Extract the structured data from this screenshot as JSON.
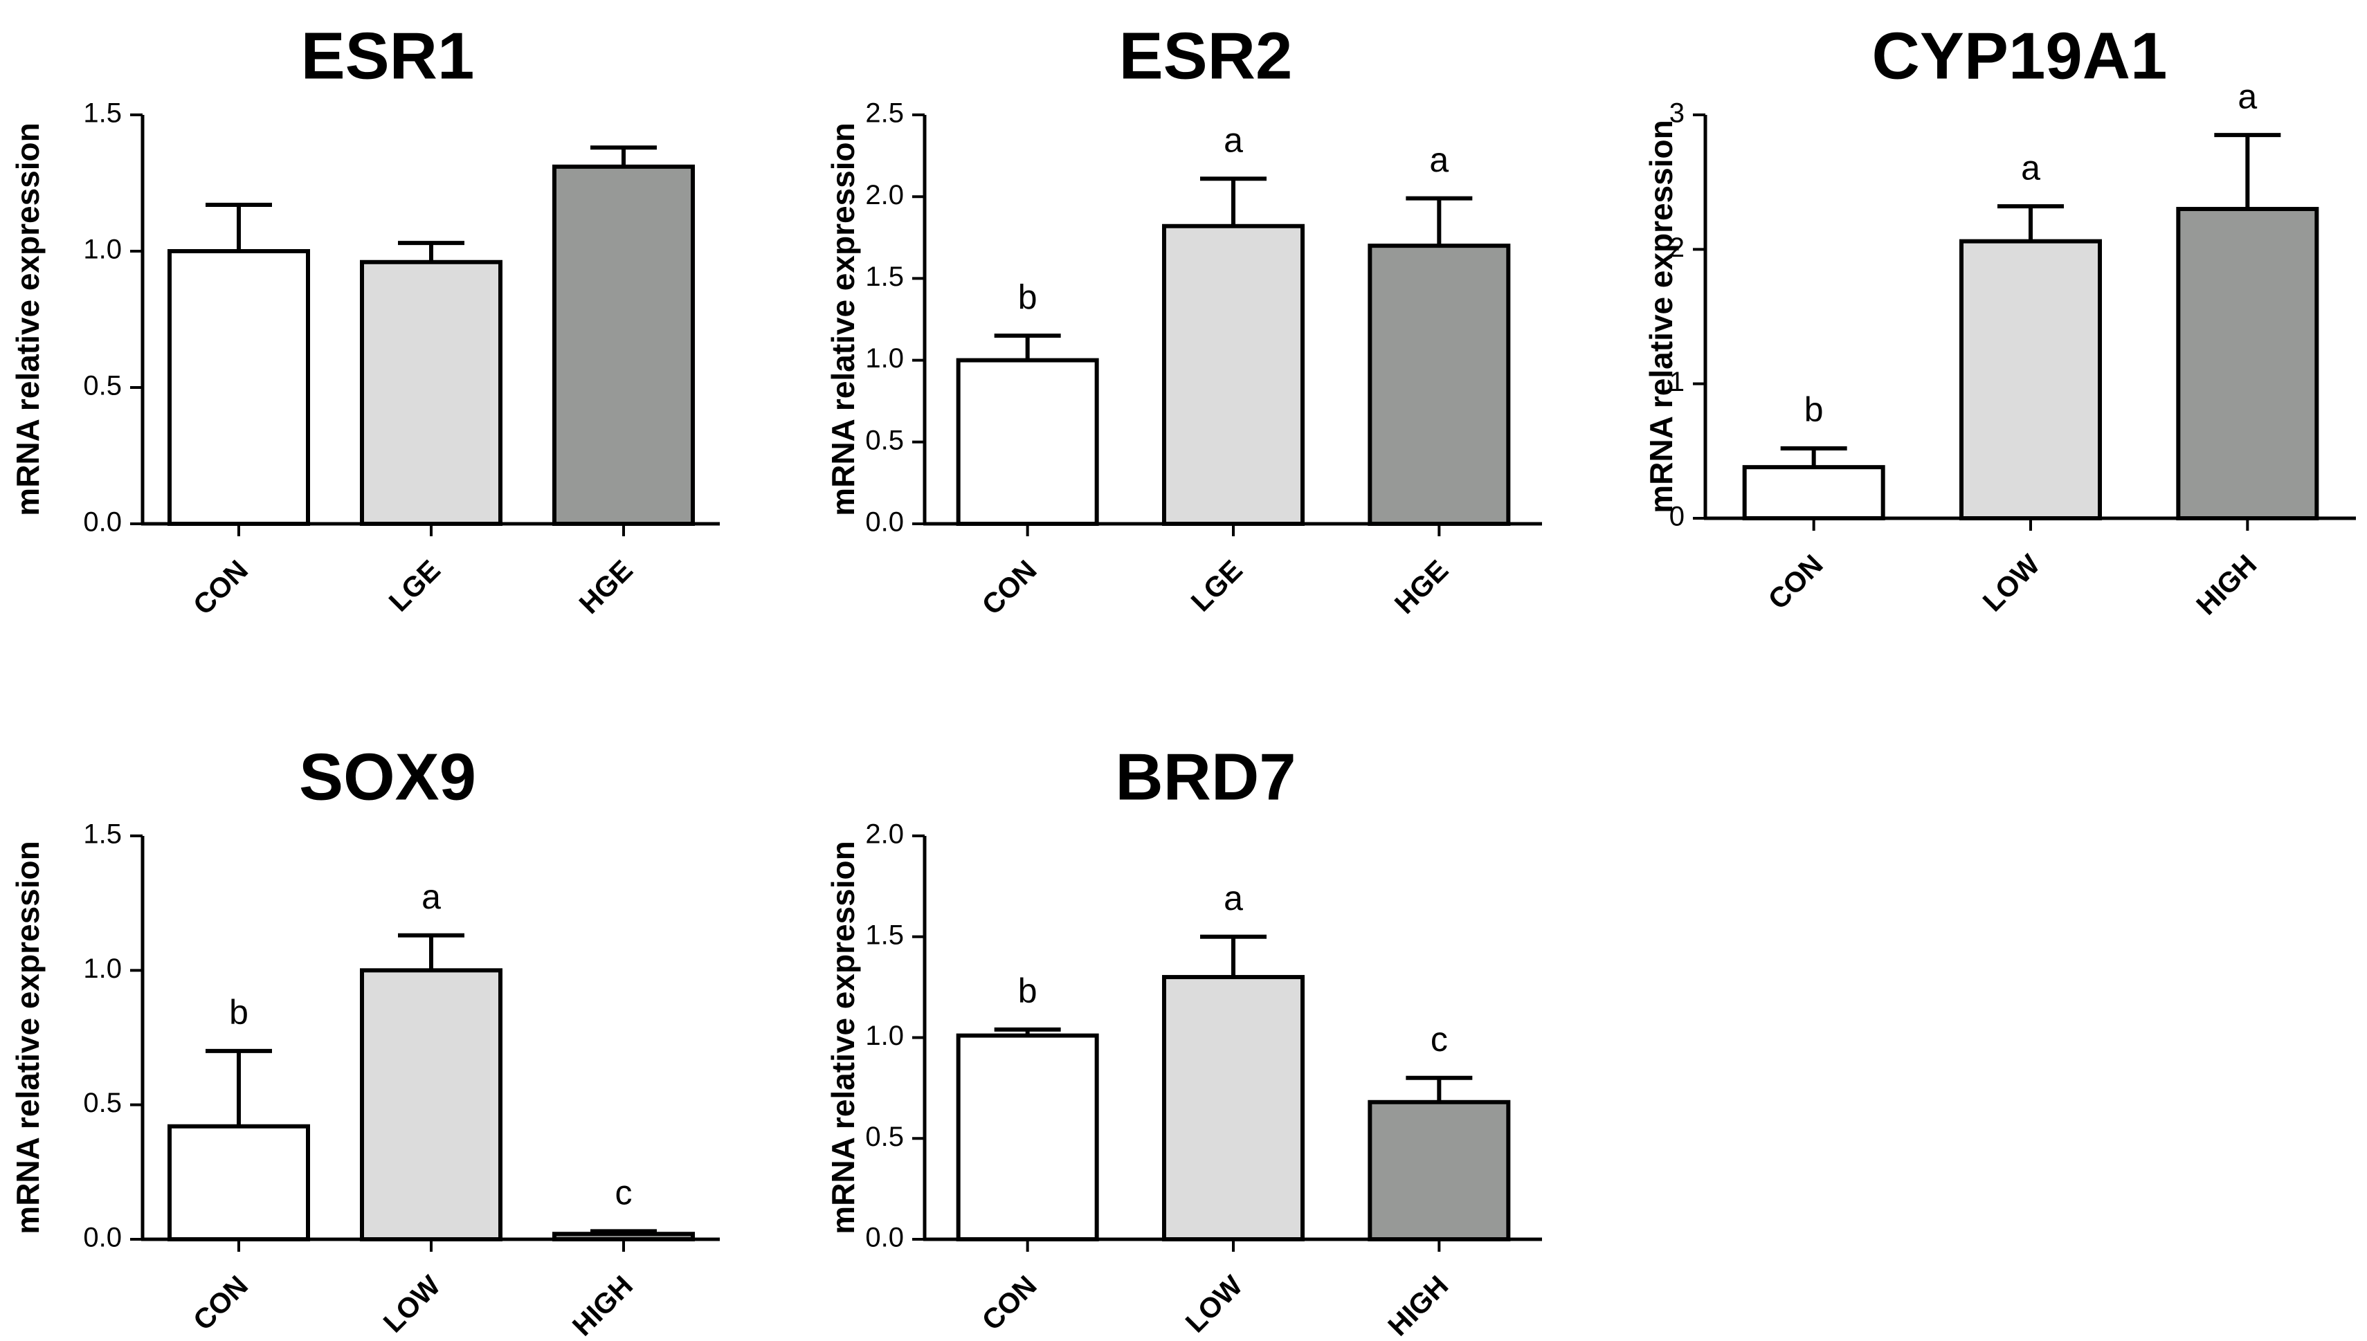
{
  "figure_colors": {
    "CON": "#ffffff",
    "LGE": "#dcdcdc",
    "LOW": "#dcdcdc",
    "HGE": "#979997",
    "HIGH": "#979997",
    "axis": "#000000"
  },
  "chart_data": [
    {
      "type": "bar",
      "title": "ESR1",
      "ylabel": "mRNA relative expression",
      "categories": [
        "CON",
        "LGE",
        "HGE"
      ],
      "values": [
        1.0,
        0.96,
        1.31
      ],
      "errors": [
        0.17,
        0.07,
        0.07
      ],
      "significance": [
        "",
        "",
        ""
      ],
      "ylim": [
        0,
        1.5
      ],
      "yticks": [
        "0.0",
        "0.5",
        "1.0",
        "1.5"
      ]
    },
    {
      "type": "bar",
      "title": "ESR2",
      "ylabel": "mRNA relative expression",
      "categories": [
        "CON",
        "LGE",
        "HGE"
      ],
      "values": [
        1.0,
        1.82,
        1.7
      ],
      "errors": [
        0.15,
        0.29,
        0.29
      ],
      "significance": [
        "b",
        "a",
        "a"
      ],
      "ylim": [
        0,
        2.5
      ],
      "yticks": [
        "0.0",
        "0.5",
        "1.0",
        "1.5",
        "2.0",
        "2.5"
      ]
    },
    {
      "type": "bar",
      "title": "CYP19A1",
      "ylabel": "mRNA relative expression",
      "categories": [
        "CON",
        "LOW",
        "HIGH"
      ],
      "values": [
        0.38,
        2.06,
        2.3
      ],
      "errors": [
        0.14,
        0.26,
        0.55
      ],
      "significance": [
        "b",
        "a",
        "a"
      ],
      "ylim": [
        0,
        3
      ],
      "yticks": [
        "0",
        "1",
        "2",
        "3"
      ]
    },
    {
      "type": "bar",
      "title": "SOX9",
      "ylabel": "mRNA relative expression",
      "categories": [
        "CON",
        "LOW",
        "HIGH"
      ],
      "values": [
        0.42,
        1.0,
        0.02
      ],
      "errors": [
        0.28,
        0.13,
        0.01
      ],
      "significance": [
        "b",
        "a",
        "c"
      ],
      "ylim": [
        0,
        1.5
      ],
      "yticks": [
        "0.0",
        "0.5",
        "1.0",
        "1.5"
      ]
    },
    {
      "type": "bar",
      "title": "BRD7",
      "ylabel": "mRNA relative expression",
      "categories": [
        "CON",
        "LOW",
        "HIGH"
      ],
      "values": [
        1.01,
        1.3,
        0.68
      ],
      "errors": [
        0.03,
        0.2,
        0.12
      ],
      "significance": [
        "b",
        "a",
        "c"
      ],
      "ylim": [
        0,
        2.0
      ],
      "yticks": [
        "0.0",
        "0.5",
        "1.0",
        "1.5",
        "2.0"
      ]
    }
  ]
}
